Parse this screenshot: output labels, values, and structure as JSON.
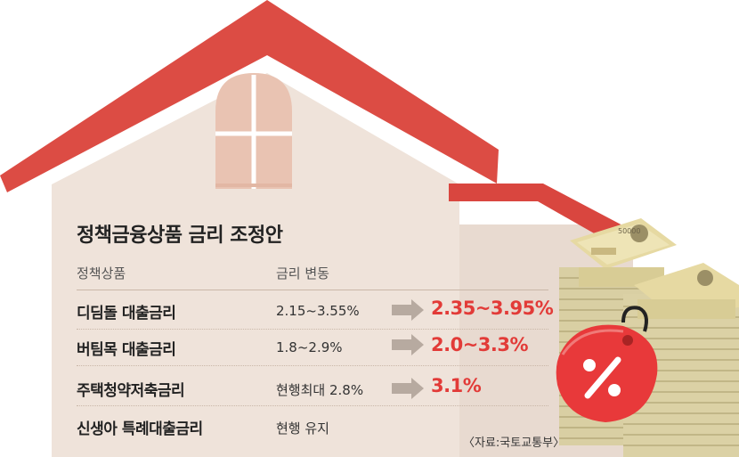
{
  "title": "정책금융상품 금리 조정안",
  "headers": {
    "product": "정책상품",
    "rate_change": "금리 변동"
  },
  "rows": [
    {
      "product": "디딤돌 대출금리",
      "current": "2.15~3.55%",
      "new": "2.35~3.95%"
    },
    {
      "product": "버팀목 대출금리",
      "current": "1.8~2.9%",
      "new": "2.0~3.3%"
    },
    {
      "product": "주택청약저축금리",
      "current": "현행최대 2.8%",
      "new": "3.1%"
    },
    {
      "product": "신생아 특례대출금리",
      "current": "현행 유지",
      "new": ""
    }
  ],
  "source": "〈자료:국토교통부〉",
  "decoration": {
    "banknote_text": "50000"
  },
  "colors": {
    "roof": "#dc4c44",
    "wall": "#efe3da",
    "arrow": "#b7aaa0",
    "accent": "#e23b38",
    "tag": "#e8393a"
  }
}
